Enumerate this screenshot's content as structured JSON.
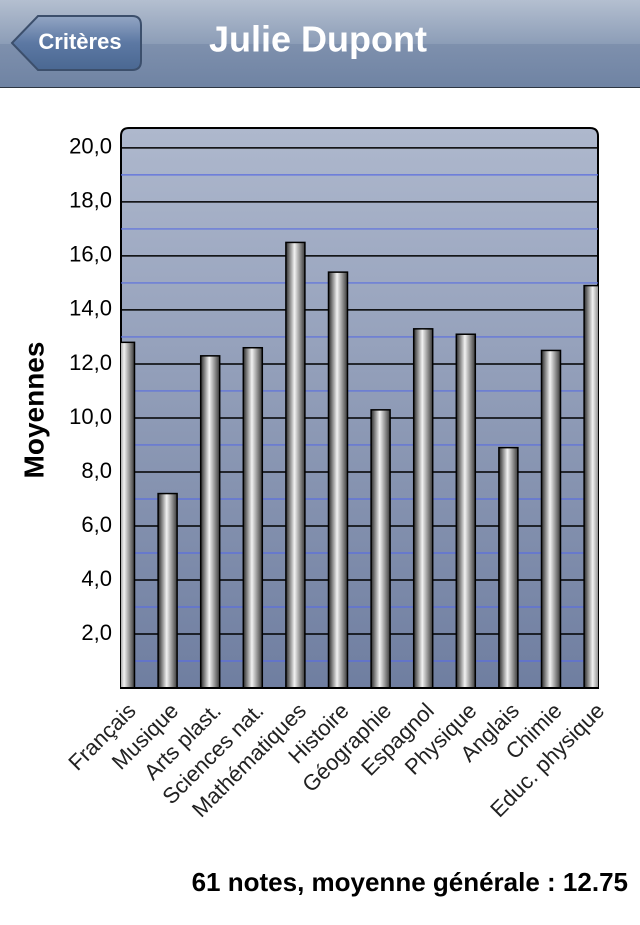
{
  "nav": {
    "back_button": "Critères",
    "title": "Julie Dupont"
  },
  "chart_data": {
    "type": "bar",
    "y_label": "Moyennes",
    "categories": [
      "Français",
      "Musique",
      "Arts plast.",
      "Sciences nat.",
      "Mathématiques",
      "Histoire",
      "Géographie",
      "Espagnol",
      "Physique",
      "Anglais",
      "Chimie",
      "Educ. physique"
    ],
    "values": [
      12.8,
      7.2,
      12.3,
      12.6,
      16.5,
      15.4,
      10.3,
      13.3,
      13.1,
      8.9,
      12.5,
      14.9
    ],
    "ylim": [
      0,
      20.7
    ],
    "yticks": [
      {
        "value": 2,
        "label": "2,0"
      },
      {
        "value": 4,
        "label": "4,0"
      },
      {
        "value": 6,
        "label": "6,0"
      },
      {
        "value": 8,
        "label": "8,0"
      },
      {
        "value": 10,
        "label": "10,0"
      },
      {
        "value": 12,
        "label": "12,0"
      },
      {
        "value": 14,
        "label": "14,0"
      },
      {
        "value": 16,
        "label": "16,0"
      },
      {
        "value": 18,
        "label": "18,0"
      },
      {
        "value": 20,
        "label": "20,0"
      }
    ],
    "minor_yticks": [
      1,
      3,
      5,
      7,
      9,
      11,
      13,
      15,
      17,
      19
    ],
    "grid": true,
    "grid_color": "#000000",
    "minor_grid_color": "#5a6ee0"
  },
  "footer": {
    "summary": "61 notes, moyenne générale : 12.75"
  }
}
